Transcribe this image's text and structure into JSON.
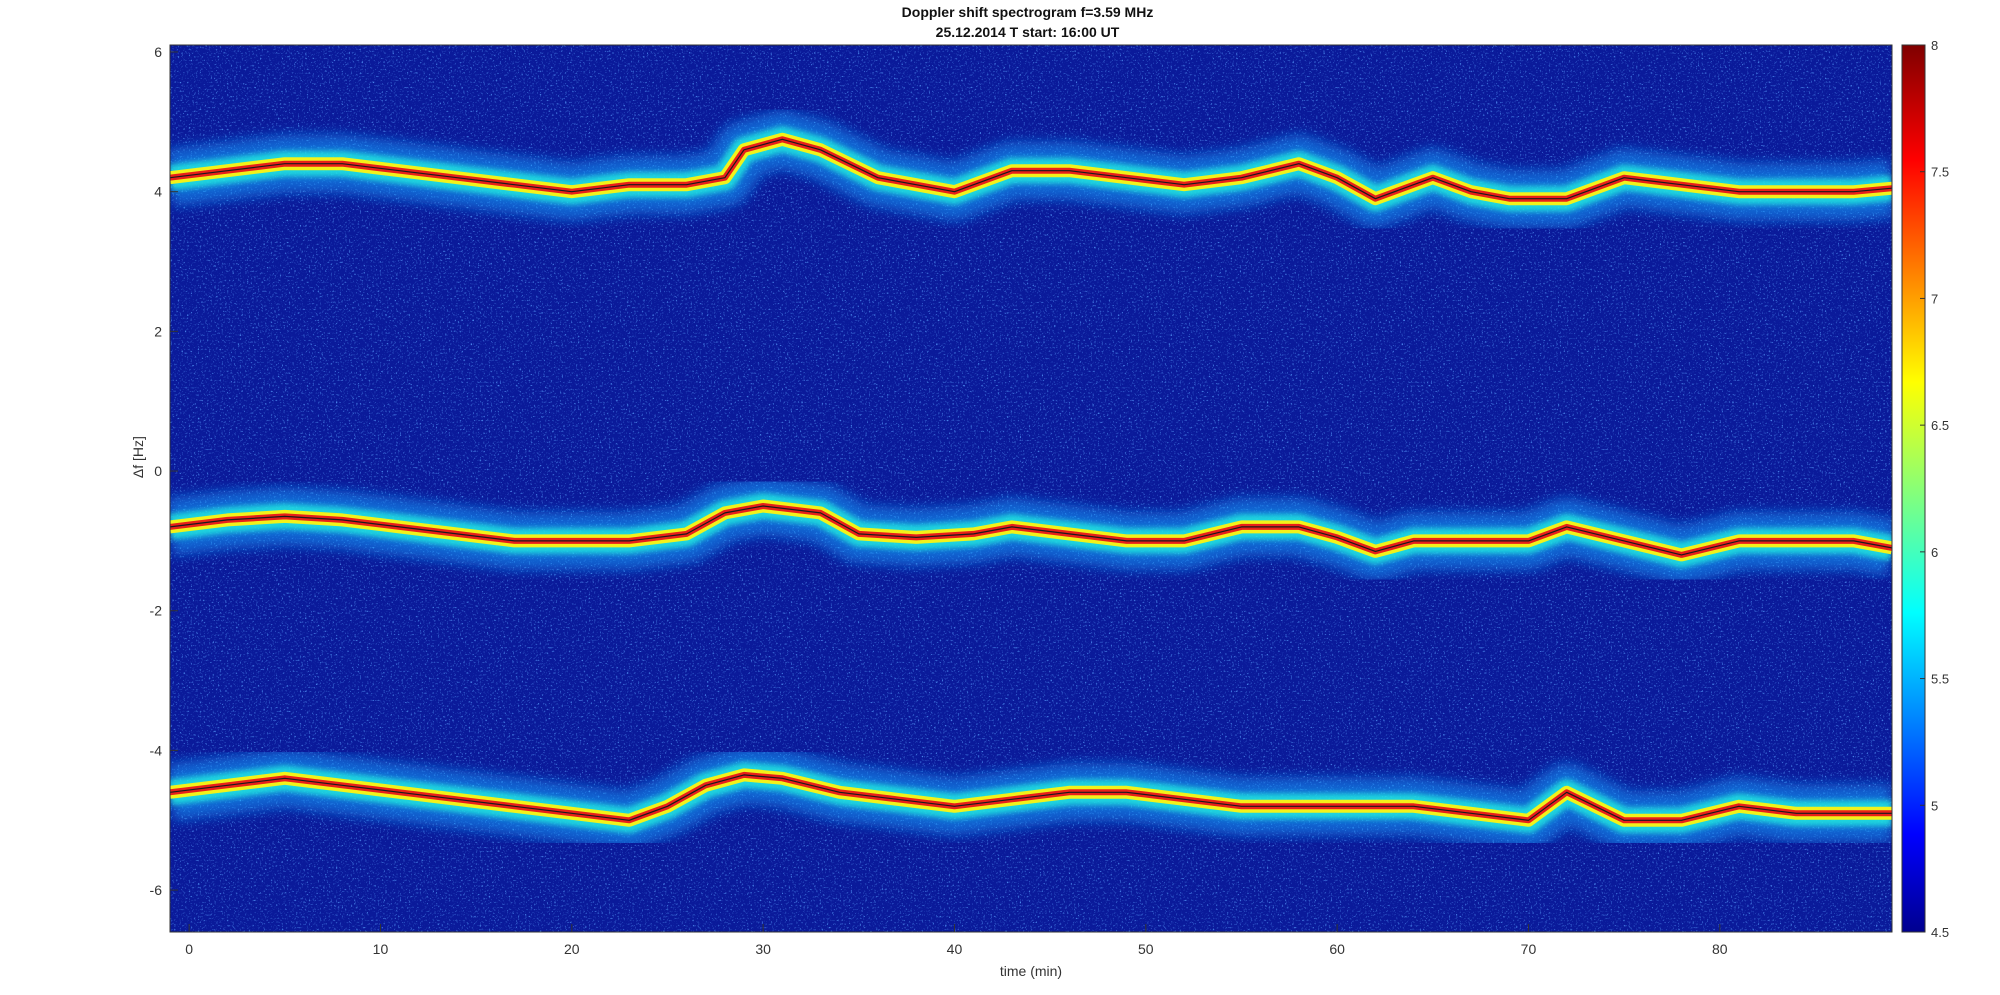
{
  "chart_data": {
    "type": "heatmap",
    "title": "Doppler shift spectrogram f=3.59 MHz",
    "subtitle": "25.12.2014   T start: 16:00 UT",
    "xlabel": "time (min)",
    "ylabel": "Δf [Hz]",
    "xlim": [
      -1,
      89
    ],
    "ylim": [
      -6.6,
      6.1
    ],
    "x_ticks": [
      0,
      10,
      20,
      30,
      40,
      50,
      60,
      70,
      80
    ],
    "x_tick_labels": [
      "0",
      "10",
      "20",
      "30",
      "40",
      "50",
      "60",
      "70",
      "80"
    ],
    "y_ticks": [
      6,
      4,
      2,
      0,
      -2,
      -4,
      -6
    ],
    "y_tick_labels": [
      "6",
      "4",
      "2",
      "0",
      "-2",
      "-4",
      "-6"
    ],
    "colorbar": {
      "min": 4.5,
      "max": 8,
      "ticks": [
        8,
        7.5,
        7,
        6.5,
        6,
        5.5,
        5,
        4.5
      ],
      "tick_labels": [
        "8",
        "7.5",
        "7",
        "6.5",
        "6",
        "5.5",
        "5",
        "4.5"
      ],
      "colormap": "jet"
    },
    "background_color": "#0a1a9a",
    "series": [
      {
        "x": [
          -1,
          2,
          5,
          8,
          11,
          14,
          17,
          20,
          23,
          26,
          28,
          29,
          31,
          33,
          36,
          40,
          43,
          46,
          49,
          52,
          55,
          58,
          60,
          62,
          65,
          67,
          69,
          72,
          75,
          78,
          81,
          84,
          87,
          89
        ],
        "y": [
          4.2,
          4.3,
          4.4,
          4.4,
          4.3,
          4.2,
          4.1,
          4.0,
          4.1,
          4.1,
          4.2,
          4.6,
          4.75,
          4.6,
          4.2,
          4.0,
          4.3,
          4.3,
          4.2,
          4.1,
          4.2,
          4.4,
          4.2,
          3.9,
          4.2,
          4.0,
          3.9,
          3.9,
          4.2,
          4.1,
          4.0,
          4.0,
          4.0,
          4.05
        ]
      },
      {
        "x": [
          -1,
          2,
          5,
          8,
          11,
          14,
          17,
          20,
          23,
          26,
          28,
          30,
          33,
          35,
          38,
          41,
          43,
          46,
          49,
          52,
          55,
          58,
          60,
          62,
          64,
          67,
          70,
          72,
          75,
          78,
          81,
          84,
          87,
          89
        ],
        "y": [
          -0.8,
          -0.7,
          -0.65,
          -0.7,
          -0.8,
          -0.9,
          -1.0,
          -1.0,
          -1.0,
          -0.9,
          -0.6,
          -0.5,
          -0.6,
          -0.9,
          -0.95,
          -0.9,
          -0.8,
          -0.9,
          -1.0,
          -1.0,
          -0.8,
          -0.8,
          -0.95,
          -1.15,
          -1.0,
          -1.0,
          -1.0,
          -0.8,
          -1.0,
          -1.2,
          -1.0,
          -1.0,
          -1.0,
          -1.1
        ]
      },
      {
        "x": [
          -1,
          2,
          5,
          8,
          11,
          14,
          17,
          20,
          23,
          25,
          27,
          29,
          31,
          34,
          37,
          40,
          43,
          46,
          49,
          52,
          55,
          58,
          61,
          64,
          67,
          70,
          72,
          75,
          78,
          81,
          84,
          87,
          89
        ],
        "y": [
          -4.6,
          -4.5,
          -4.4,
          -4.5,
          -4.6,
          -4.7,
          -4.8,
          -4.9,
          -5.0,
          -4.8,
          -4.5,
          -4.35,
          -4.4,
          -4.6,
          -4.7,
          -4.8,
          -4.7,
          -4.6,
          -4.6,
          -4.7,
          -4.8,
          -4.8,
          -4.8,
          -4.8,
          -4.9,
          -5.0,
          -4.6,
          -5.0,
          -5.0,
          -4.8,
          -4.9,
          -4.9,
          -4.9
        ]
      }
    ],
    "grid": false,
    "legend": "none"
  }
}
